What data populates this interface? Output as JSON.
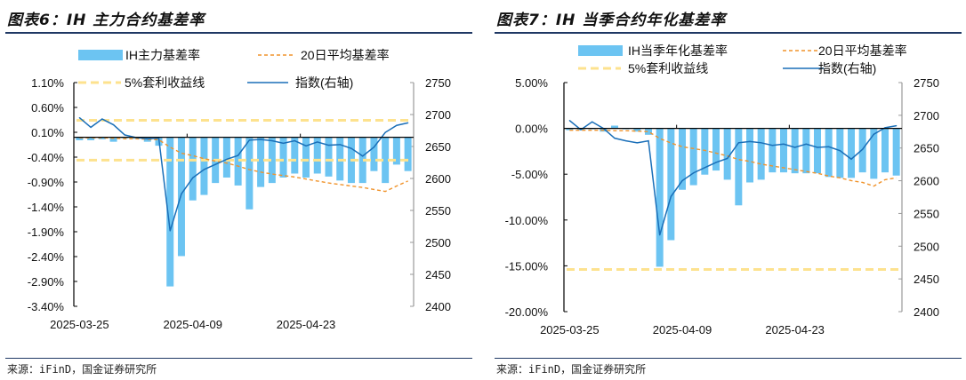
{
  "colors": {
    "bar": "#6cc4f2",
    "avg": "#f0932b",
    "arb": "#fde28e",
    "index": "#1a6fb8",
    "header_line": "#1f3864"
  },
  "left": {
    "title": "图表6：IH 主力合约基差率",
    "source": "来源：iFinD，国金证券研究所"
  },
  "right": {
    "title": "图表7：IH 当季合约年化基差率",
    "source": "来源：iFinD，国金证券研究所"
  },
  "chart_data": [
    {
      "type": "bar",
      "title": "图表6：IH 主力合约基差率",
      "x_tick_labels": [
        "2025-03-25",
        "2025-04-09",
        "2025-04-23"
      ],
      "x_tick_positions": [
        0,
        10,
        20
      ],
      "y_left": {
        "ylim": [
          -3.4,
          1.1
        ],
        "ticks": [
          "1.10%",
          "0.60%",
          "0.10%",
          "-0.40%",
          "-0.90%",
          "-1.40%",
          "-1.90%",
          "-2.40%",
          "-2.90%",
          "-3.40%"
        ],
        "unit": "%"
      },
      "y_right": {
        "ylim": [
          2400,
          2750
        ],
        "ticks": [
          "2750",
          "2700",
          "2650",
          "2600",
          "2550",
          "2500",
          "2450",
          "2400"
        ]
      },
      "legend": [
        "IH主力基差率",
        "20日平均基差率",
        "5%套利收益线",
        "指数(右轴)"
      ],
      "series": [
        {
          "name": "IH主力基差率",
          "kind": "bar",
          "axis": "left",
          "values": [
            -0.06,
            -0.06,
            -0.04,
            -0.09,
            -0.02,
            -0.03,
            -0.09,
            -0.17,
            -3.0,
            -2.39,
            -1.27,
            -1.16,
            -0.92,
            -0.81,
            -0.97,
            -1.45,
            -1.0,
            -0.92,
            -0.81,
            -0.73,
            -0.81,
            -0.73,
            -0.79,
            -0.87,
            -0.92,
            -0.92,
            -0.68,
            -0.92,
            -0.55,
            -0.68
          ]
        },
        {
          "name": "20日平均基差率",
          "kind": "dashed-line",
          "axis": "left",
          "values": [
            -0.01,
            -0.01,
            -0.01,
            -0.02,
            -0.03,
            -0.03,
            -0.04,
            -0.05,
            -0.2,
            -0.32,
            -0.37,
            -0.43,
            -0.48,
            -0.52,
            -0.58,
            -0.65,
            -0.7,
            -0.74,
            -0.77,
            -0.8,
            -0.84,
            -0.88,
            -0.92,
            -0.95,
            -0.98,
            -1.01,
            -1.05,
            -1.09,
            -0.98,
            -0.88
          ]
        },
        {
          "name": "5%套利收益线",
          "kind": "hline",
          "axis": "left",
          "values": [
            0.34,
            -0.46
          ]
        },
        {
          "name": "指数(右轴)",
          "kind": "line",
          "axis": "right",
          "values": [
            2695,
            2680,
            2693,
            2684,
            2668,
            2664,
            2662,
            2663,
            2518,
            2576,
            2601,
            2614,
            2622,
            2630,
            2636,
            2660,
            2661,
            2659,
            2655,
            2659,
            2651,
            2657,
            2652,
            2653,
            2647,
            2635,
            2649,
            2672,
            2683,
            2687
          ]
        }
      ]
    },
    {
      "type": "bar",
      "title": "图表7：IH 当季合约年化基差率",
      "x_tick_labels": [
        "2025-03-25",
        "2025-04-09",
        "2025-04-23"
      ],
      "x_tick_positions": [
        0,
        10,
        20
      ],
      "y_left": {
        "ylim": [
          -20,
          5
        ],
        "ticks": [
          "5.00%",
          "0.00%",
          "-5.00%",
          "-10.00%",
          "-15.00%",
          "-20.00%"
        ],
        "unit": "%"
      },
      "y_right": {
        "ylim": [
          2400,
          2750
        ],
        "ticks": [
          "2750",
          "2700",
          "2650",
          "2600",
          "2550",
          "2500",
          "2450",
          "2400"
        ]
      },
      "legend": [
        "IH当季年化基差率",
        "20日平均基差率",
        "5%套利收益线",
        "指数(右轴)"
      ],
      "series": [
        {
          "name": "IH当季年化基差率",
          "kind": "bar",
          "axis": "left",
          "values": [
            -0.2,
            -0.2,
            -0.05,
            -0.35,
            0.3,
            -0.1,
            -0.35,
            -0.7,
            -15.1,
            -12.2,
            -6.7,
            -6.2,
            -5.05,
            -4.6,
            -5.6,
            -8.4,
            -5.9,
            -5.6,
            -4.8,
            -4.8,
            -4.9,
            -4.9,
            -4.9,
            -5.3,
            -5.4,
            -5.4,
            -4.8,
            -5.5,
            -4.8,
            -5.15
          ]
        },
        {
          "name": "20日平均基差率",
          "kind": "dashed-line",
          "axis": "left",
          "values": [
            -0.2,
            -0.2,
            -0.2,
            -0.2,
            -0.25,
            -0.25,
            -0.3,
            -0.35,
            -1.1,
            -1.6,
            -2.0,
            -2.2,
            -2.4,
            -2.7,
            -3.0,
            -3.4,
            -3.6,
            -3.9,
            -4.1,
            -4.3,
            -4.5,
            -4.7,
            -4.9,
            -5.2,
            -5.4,
            -5.7,
            -5.9,
            -6.3,
            -5.6,
            -5.4
          ]
        },
        {
          "name": "5%套利收益线",
          "kind": "hline",
          "axis": "left",
          "values": [
            -15.4
          ]
        },
        {
          "name": "指数(右轴)",
          "kind": "line",
          "axis": "right",
          "values": [
            2692,
            2678,
            2690,
            2680,
            2665,
            2661,
            2658,
            2661,
            2517,
            2576,
            2600,
            2612,
            2620,
            2628,
            2634,
            2658,
            2660,
            2658,
            2654,
            2656,
            2651,
            2656,
            2651,
            2652,
            2646,
            2633,
            2648,
            2671,
            2681,
            2684
          ]
        }
      ]
    }
  ]
}
